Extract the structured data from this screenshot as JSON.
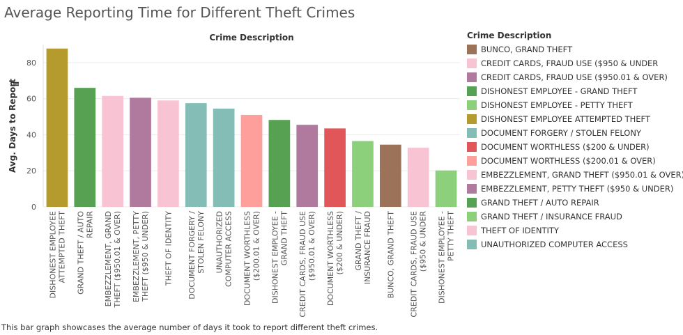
{
  "title": "Average Reporting Time for Different Theft Crimes",
  "caption": "This bar graph showcases the average number of days it took to report different theft crimes.",
  "legend": {
    "title": "Crime Description",
    "items": [
      {
        "label": "BUNCO, GRAND THEFT",
        "color": "#9c7358"
      },
      {
        "label": "CREDIT CARDS, FRAUD USE ($950 & UNDER",
        "color": "#f8c3d2"
      },
      {
        "label": "CREDIT CARDS, FRAUD USE ($950.01 & OVER)",
        "color": "#b0799e"
      },
      {
        "label": "DISHONEST EMPLOYEE - GRAND THEFT",
        "color": "#57a152"
      },
      {
        "label": "DISHONEST EMPLOYEE - PETTY THEFT",
        "color": "#8dd07c"
      },
      {
        "label": "DISHONEST EMPLOYEE ATTEMPTED THEFT",
        "color": "#b59a2e"
      },
      {
        "label": "DOCUMENT FORGERY / STOLEN FELONY",
        "color": "#84bdb6"
      },
      {
        "label": "DOCUMENT WORTHLESS ($200 & UNDER)",
        "color": "#e15759"
      },
      {
        "label": "DOCUMENT WORTHLESS ($200.01 & OVER)",
        "color": "#fe9f9b"
      },
      {
        "label": "EMBEZZLEMENT, GRAND THEFT ($950.01 & OVER)",
        "color": "#f8c3d2"
      },
      {
        "label": "EMBEZZLEMENT, PETTY THEFT ($950 & UNDER)",
        "color": "#b0799e"
      },
      {
        "label": "GRAND THEFT / AUTO REPAIR",
        "color": "#57a152"
      },
      {
        "label": "GRAND THEFT / INSURANCE FRAUD",
        "color": "#8dd07c"
      },
      {
        "label": "THEFT OF IDENTITY",
        "color": "#f8c3d2"
      },
      {
        "label": "UNAUTHORIZED COMPUTER ACCESS",
        "color": "#84bdb6"
      }
    ]
  },
  "chart_data": {
    "type": "bar",
    "column_header": "Crime Description",
    "ylabel": "Avg. Days to Report",
    "ylim": [
      0,
      90
    ],
    "yticks": [
      0,
      20,
      40,
      60,
      80
    ],
    "grid": true,
    "legend_position": "right",
    "bars": [
      {
        "label": [
          "DISHONEST EMPLOYEE",
          "ATTEMPTED THEFT"
        ],
        "value": 87.8,
        "color": "#b59a2e"
      },
      {
        "label": [
          "GRAND THEFT / AUTO",
          "REPAIR"
        ],
        "value": 66.0,
        "color": "#57a152"
      },
      {
        "label": [
          "EMBEZZLEMENT, GRAND",
          "THEFT ($950.01 & OVER)"
        ],
        "value": 61.5,
        "color": "#f8c3d2"
      },
      {
        "label": [
          "EMBEZZLEMENT, PETTY",
          "THEFT ($950 & UNDER)"
        ],
        "value": 60.5,
        "color": "#b0799e"
      },
      {
        "label": [
          "THEFT OF IDENTITY"
        ],
        "value": 59.0,
        "color": "#f8c3d2"
      },
      {
        "label": [
          "DOCUMENT FORGERY /",
          "STOLEN FELONY"
        ],
        "value": 57.5,
        "color": "#84bdb6"
      },
      {
        "label": [
          "UNAUTHORIZED",
          "COMPUTER ACCESS"
        ],
        "value": 54.5,
        "color": "#84bdb6"
      },
      {
        "label": [
          "DOCUMENT WORTHLESS",
          "($200.01 & OVER)"
        ],
        "value": 51.0,
        "color": "#fe9f9b"
      },
      {
        "label": [
          "DISHONEST EMPLOYEE -",
          "GRAND THEFT"
        ],
        "value": 48.2,
        "color": "#57a152"
      },
      {
        "label": [
          "CREDIT CARDS, FRAUD USE",
          "($950.01 & OVER)"
        ],
        "value": 45.5,
        "color": "#b0799e"
      },
      {
        "label": [
          "DOCUMENT WORTHLESS",
          "($200 & UNDER)"
        ],
        "value": 43.5,
        "color": "#e15759"
      },
      {
        "label": [
          "GRAND THEFT /",
          "INSURANCE FRAUD"
        ],
        "value": 36.5,
        "color": "#8dd07c"
      },
      {
        "label": [
          "BUNCO, GRAND THEFT"
        ],
        "value": 34.5,
        "color": "#9c7358"
      },
      {
        "label": [
          "CREDIT CARDS, FRAUD USE",
          "($950 & UNDER"
        ],
        "value": 32.8,
        "color": "#f8c3d2"
      },
      {
        "label": [
          "DISHONEST EMPLOYEE -",
          "PETTY THEFT"
        ],
        "value": 20.2,
        "color": "#8dd07c"
      }
    ]
  }
}
